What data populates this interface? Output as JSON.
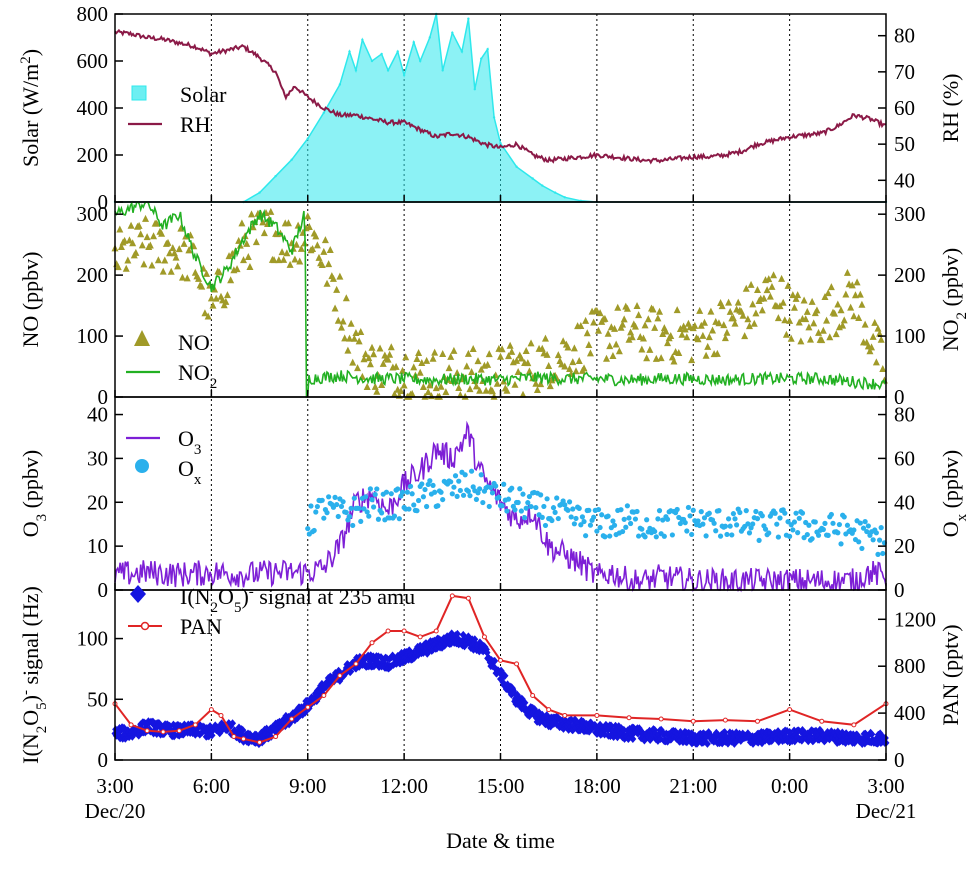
{
  "x_axis": {
    "title": "Date & time",
    "tick_labels": [
      "3:00",
      "6:00",
      "9:00",
      "12:00",
      "15:00",
      "18:00",
      "21:00",
      "0:00",
      "3:00"
    ],
    "date_labels": [
      {
        "text": "Dec/20",
        "tick": 0
      },
      {
        "text": "Dec/21",
        "tick": 8
      }
    ],
    "gridlines": "dotted vertical at each tick"
  },
  "chart_data": [
    {
      "type": "area",
      "panel": 1,
      "x_range_hours": [
        3,
        27
      ],
      "left_axis": {
        "label": [
          "Solar (W/m",
          "2",
          ")"
        ],
        "ylim": [
          0,
          800
        ],
        "ticks": [
          0,
          200,
          400,
          600,
          800
        ]
      },
      "right_axis": {
        "label": "RH (%)",
        "ylim": [
          34,
          86
        ],
        "ticks": [
          40,
          50,
          60,
          70,
          80
        ]
      },
      "series": [
        {
          "name": "Solar",
          "axis": "left",
          "style": "area",
          "color": "#2ee8ec",
          "x": [
            3,
            7.0,
            7.5,
            8.0,
            8.5,
            9.0,
            9.5,
            10.0,
            10.3,
            10.5,
            10.7,
            11.0,
            11.3,
            11.5,
            11.8,
            12.0,
            12.3,
            12.5,
            12.8,
            13.0,
            13.2,
            13.5,
            13.8,
            14.0,
            14.2,
            14.4,
            14.6,
            14.8,
            15.0,
            15.5,
            16.0,
            16.3,
            16.7,
            17.0,
            17.5,
            18.0,
            27
          ],
          "y": [
            0,
            0,
            40,
            110,
            180,
            270,
            380,
            500,
            640,
            560,
            690,
            600,
            630,
            560,
            640,
            540,
            680,
            600,
            700,
            800,
            560,
            720,
            640,
            780,
            480,
            610,
            650,
            360,
            250,
            150,
            100,
            70,
            40,
            20,
            5,
            0,
            0
          ]
        },
        {
          "name": "RH",
          "axis": "right",
          "style": "line",
          "color": "#8b1a47",
          "x": [
            3,
            3.5,
            4,
            4.5,
            5,
            5.5,
            6,
            6.5,
            7,
            7.5,
            8,
            8.3,
            8.6,
            9,
            9.5,
            10,
            10.5,
            11,
            11.5,
            12,
            12.5,
            13,
            13.5,
            14,
            14.5,
            15,
            15.5,
            16,
            16.5,
            17,
            17.5,
            18,
            18.5,
            19,
            19.5,
            20,
            20.5,
            21,
            21.5,
            22,
            22.5,
            23,
            23.5,
            24,
            24.5,
            25,
            25.5,
            26,
            26.5,
            27
          ],
          "y": [
            81,
            80.5,
            79.5,
            79,
            78,
            77,
            75,
            76,
            77,
            74,
            70,
            63,
            66,
            63,
            60,
            58,
            58,
            57,
            56,
            56,
            54,
            52,
            53,
            52,
            50,
            49,
            50,
            47,
            45.5,
            46,
            46.5,
            47,
            46.5,
            46,
            45.5,
            45.5,
            46,
            46.5,
            46.5,
            47,
            48,
            50,
            51,
            52,
            52.5,
            53,
            55,
            58,
            57,
            55
          ]
        }
      ]
    },
    {
      "type": "scatter",
      "panel": 2,
      "x_range_hours": [
        3,
        27
      ],
      "left_axis": {
        "label": "NO (ppbv)",
        "ylim": [
          0,
          320
        ],
        "ticks": [
          0,
          100,
          200,
          300
        ]
      },
      "right_axis": {
        "label": [
          "NO",
          "2",
          " (ppbv)"
        ],
        "ylim": [
          0,
          320
        ],
        "ticks": [
          0,
          100,
          200,
          300
        ]
      },
      "series": [
        {
          "name": "NO",
          "axis": "left",
          "style": "triangle",
          "color": "#a09a28",
          "x": [
            3,
            4,
            5,
            5.5,
            6,
            6.5,
            7,
            7.5,
            8,
            8.5,
            9,
            9.5,
            10,
            10.5,
            11,
            12,
            13,
            14,
            15,
            16,
            17,
            18,
            19,
            20,
            21,
            22,
            23,
            23.5,
            24,
            24.5,
            25,
            25.5,
            26,
            26.5,
            27
          ],
          "y": [
            230,
            250,
            240,
            220,
            140,
            200,
            250,
            265,
            270,
            250,
            280,
            230,
            160,
            80,
            50,
            45,
            35,
            35,
            40,
            50,
            70,
            100,
            110,
            100,
            100,
            120,
            150,
            175,
            140,
            120,
            130,
            150,
            170,
            100,
            40
          ]
        },
        {
          "name": "NO2",
          "axis": "right",
          "style": "line",
          "color": "#22b022",
          "x": [
            3,
            4,
            4.5,
            5,
            5.5,
            6,
            6.5,
            7,
            7.5,
            8,
            8.5,
            8.9,
            9,
            10,
            11,
            12,
            13,
            14,
            15,
            16,
            17,
            18,
            19,
            20,
            21,
            22,
            23,
            24,
            25,
            26,
            27
          ],
          "y": [
            300,
            320,
            280,
            300,
            230,
            180,
            210,
            260,
            300,
            280,
            240,
            300,
            30,
            35,
            30,
            30,
            28,
            30,
            28,
            32,
            30,
            30,
            28,
            30,
            30,
            28,
            30,
            30,
            30,
            25,
            20
          ]
        }
      ]
    },
    {
      "type": "line",
      "panel": 3,
      "x_range_hours": [
        3,
        27
      ],
      "left_axis": {
        "label": [
          "O",
          "3",
          " (ppbv)"
        ],
        "ylim": [
          0,
          44
        ],
        "ticks": [
          0,
          10,
          20,
          30,
          40
        ]
      },
      "right_axis": {
        "label": [
          "O",
          "x",
          " (ppbv)"
        ],
        "ylim": [
          0,
          88
        ],
        "ticks": [
          0,
          20,
          40,
          60,
          80
        ]
      },
      "series": [
        {
          "name": "O3",
          "axis": "left",
          "style": "line",
          "color": "#7d1fd6",
          "x": [
            3,
            4,
            5,
            6,
            7,
            8,
            9,
            9.5,
            10,
            10.5,
            11,
            11.5,
            12,
            12.5,
            13,
            13.5,
            14,
            14.3,
            14.6,
            15,
            15.5,
            16,
            16.5,
            17,
            17.5,
            18,
            18.5,
            19,
            19.5,
            20,
            21,
            22,
            23,
            24,
            25,
            26,
            26.5,
            27
          ],
          "y": [
            3.5,
            4,
            3.5,
            4,
            3.5,
            4,
            4,
            5,
            10,
            20,
            22,
            18,
            24,
            27,
            32,
            30,
            36,
            28,
            24,
            20,
            16,
            18,
            10,
            8,
            6,
            3,
            4,
            2,
            2,
            3,
            2,
            2,
            2,
            2,
            2,
            2,
            4,
            3
          ]
        },
        {
          "name": "Ox",
          "axis": "right",
          "style": "dot",
          "color": "#2ab0ec",
          "x": [
            9,
            9.5,
            10,
            10.5,
            11,
            11.5,
            12,
            12.5,
            13,
            13.5,
            14,
            14.5,
            15,
            15.5,
            16,
            16.5,
            17,
            17.5,
            18,
            18.5,
            19,
            19.5,
            20,
            20.5,
            21,
            21.5,
            22,
            22.5,
            23,
            23.5,
            24,
            24.5,
            25,
            25.5,
            26,
            26.5,
            27
          ],
          "y": [
            30,
            38,
            35,
            36,
            40,
            38,
            40,
            42,
            44,
            46,
            48,
            45,
            42,
            40,
            38,
            36,
            34,
            32,
            30,
            30,
            32,
            30,
            30,
            31,
            32,
            30,
            31,
            30,
            29,
            30,
            30,
            29,
            28,
            28,
            27,
            24,
            22
          ]
        }
      ]
    },
    {
      "type": "scatter",
      "panel": 4,
      "x_range_hours": [
        3,
        27
      ],
      "left_axis": {
        "label": [
          "I(N",
          "2",
          "O",
          "5",
          ")",
          "-",
          " signal (Hz)"
        ],
        "ylim": [
          0,
          140
        ],
        "ticks": [
          0,
          50,
          100
        ]
      },
      "right_axis": {
        "label": "PAN (pptv)",
        "ylim": [
          0,
          1450
        ],
        "ticks": [
          0,
          400,
          800,
          1200
        ]
      },
      "series": [
        {
          "name": "I(N2O5)- signal at 235 amu",
          "axis": "left",
          "style": "diamond",
          "color": "#1515e0",
          "x": [
            3,
            3.5,
            4,
            4.5,
            5,
            5.5,
            6,
            6.5,
            7,
            7.5,
            8,
            8.5,
            9,
            9.5,
            10,
            10.5,
            11,
            11.5,
            12,
            12.5,
            13,
            13.5,
            14,
            14.5,
            15,
            15.5,
            16,
            16.5,
            17,
            17.5,
            18,
            19,
            20,
            21,
            22,
            23,
            24,
            25,
            26,
            27
          ],
          "y": [
            22,
            22,
            28,
            25,
            24,
            25,
            23,
            28,
            20,
            18,
            25,
            35,
            45,
            60,
            70,
            80,
            82,
            80,
            84,
            90,
            95,
            100,
            98,
            90,
            70,
            50,
            38,
            32,
            30,
            28,
            25,
            22,
            20,
            18,
            18,
            18,
            20,
            20,
            18,
            18
          ]
        },
        {
          "name": "PAN",
          "axis": "right",
          "style": "line-marker",
          "color": "#e02525",
          "x": [
            3,
            3.5,
            4,
            4.5,
            5,
            5.5,
            6,
            6.3,
            6.7,
            7,
            7.5,
            8,
            8.5,
            9,
            9.5,
            10,
            10.5,
            11,
            11.5,
            12,
            12.5,
            13,
            13.5,
            14,
            14.5,
            15,
            15.5,
            16,
            16.5,
            17,
            18,
            19,
            20,
            21,
            22,
            23,
            24,
            25,
            26,
            27
          ],
          "y": [
            480,
            300,
            250,
            240,
            250,
            300,
            430,
            380,
            200,
            180,
            150,
            200,
            350,
            450,
            550,
            720,
            820,
            1000,
            1100,
            1100,
            1050,
            1100,
            1400,
            1380,
            1050,
            850,
            820,
            550,
            430,
            380,
            380,
            360,
            350,
            330,
            340,
            330,
            430,
            330,
            300,
            480
          ]
        }
      ]
    }
  ],
  "legends": [
    {
      "panel": 1,
      "entries": [
        {
          "series": "Solar",
          "label": "Solar"
        },
        {
          "series": "RH",
          "label": "RH"
        }
      ]
    },
    {
      "panel": 2,
      "entries": [
        {
          "series": "NO",
          "label": "NO"
        },
        {
          "series": "NO2",
          "label": [
            "NO",
            "2"
          ]
        }
      ]
    },
    {
      "panel": 3,
      "entries": [
        {
          "series": "O3",
          "label": [
            "O",
            "3"
          ]
        },
        {
          "series": "Ox",
          "label": [
            "O",
            "x"
          ]
        }
      ]
    },
    {
      "panel": 4,
      "entries": [
        {
          "series": "I(N2O5)- signal at 235 amu",
          "label": [
            "I(N",
            "2",
            "O",
            "5",
            ")",
            "-",
            " signal at 235 amu"
          ]
        },
        {
          "series": "PAN",
          "label": "PAN"
        }
      ]
    }
  ]
}
